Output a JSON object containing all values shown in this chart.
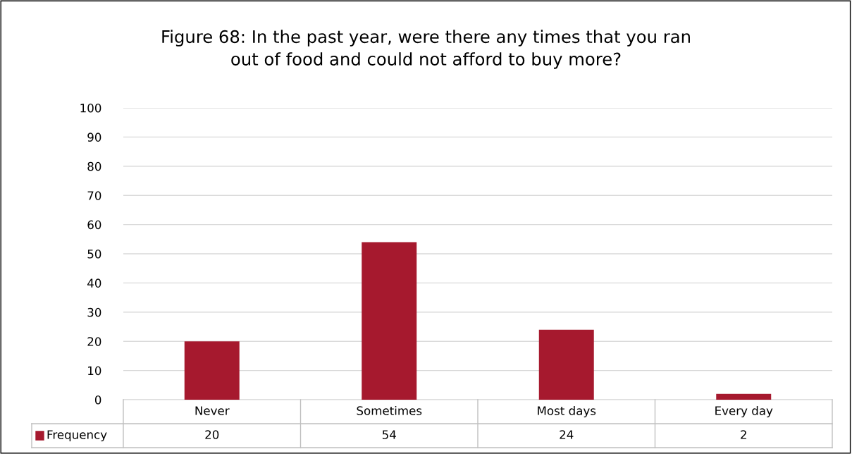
{
  "chart_data": {
    "type": "bar",
    "title": "Figure 68: In the past year, were there any times that you ran\nout of food and could not afford to buy more?",
    "categories": [
      "Never",
      "Sometimes",
      "Most days",
      "Every day"
    ],
    "series": [
      {
        "name": "Frequency",
        "color": "#a6192e",
        "values": [
          20,
          54,
          24,
          2
        ]
      }
    ],
    "ylim": [
      0,
      100
    ],
    "yticks": [
      0,
      10,
      20,
      30,
      40,
      50,
      60,
      70,
      80,
      90,
      100
    ],
    "grid": "y",
    "data_labels": true
  }
}
